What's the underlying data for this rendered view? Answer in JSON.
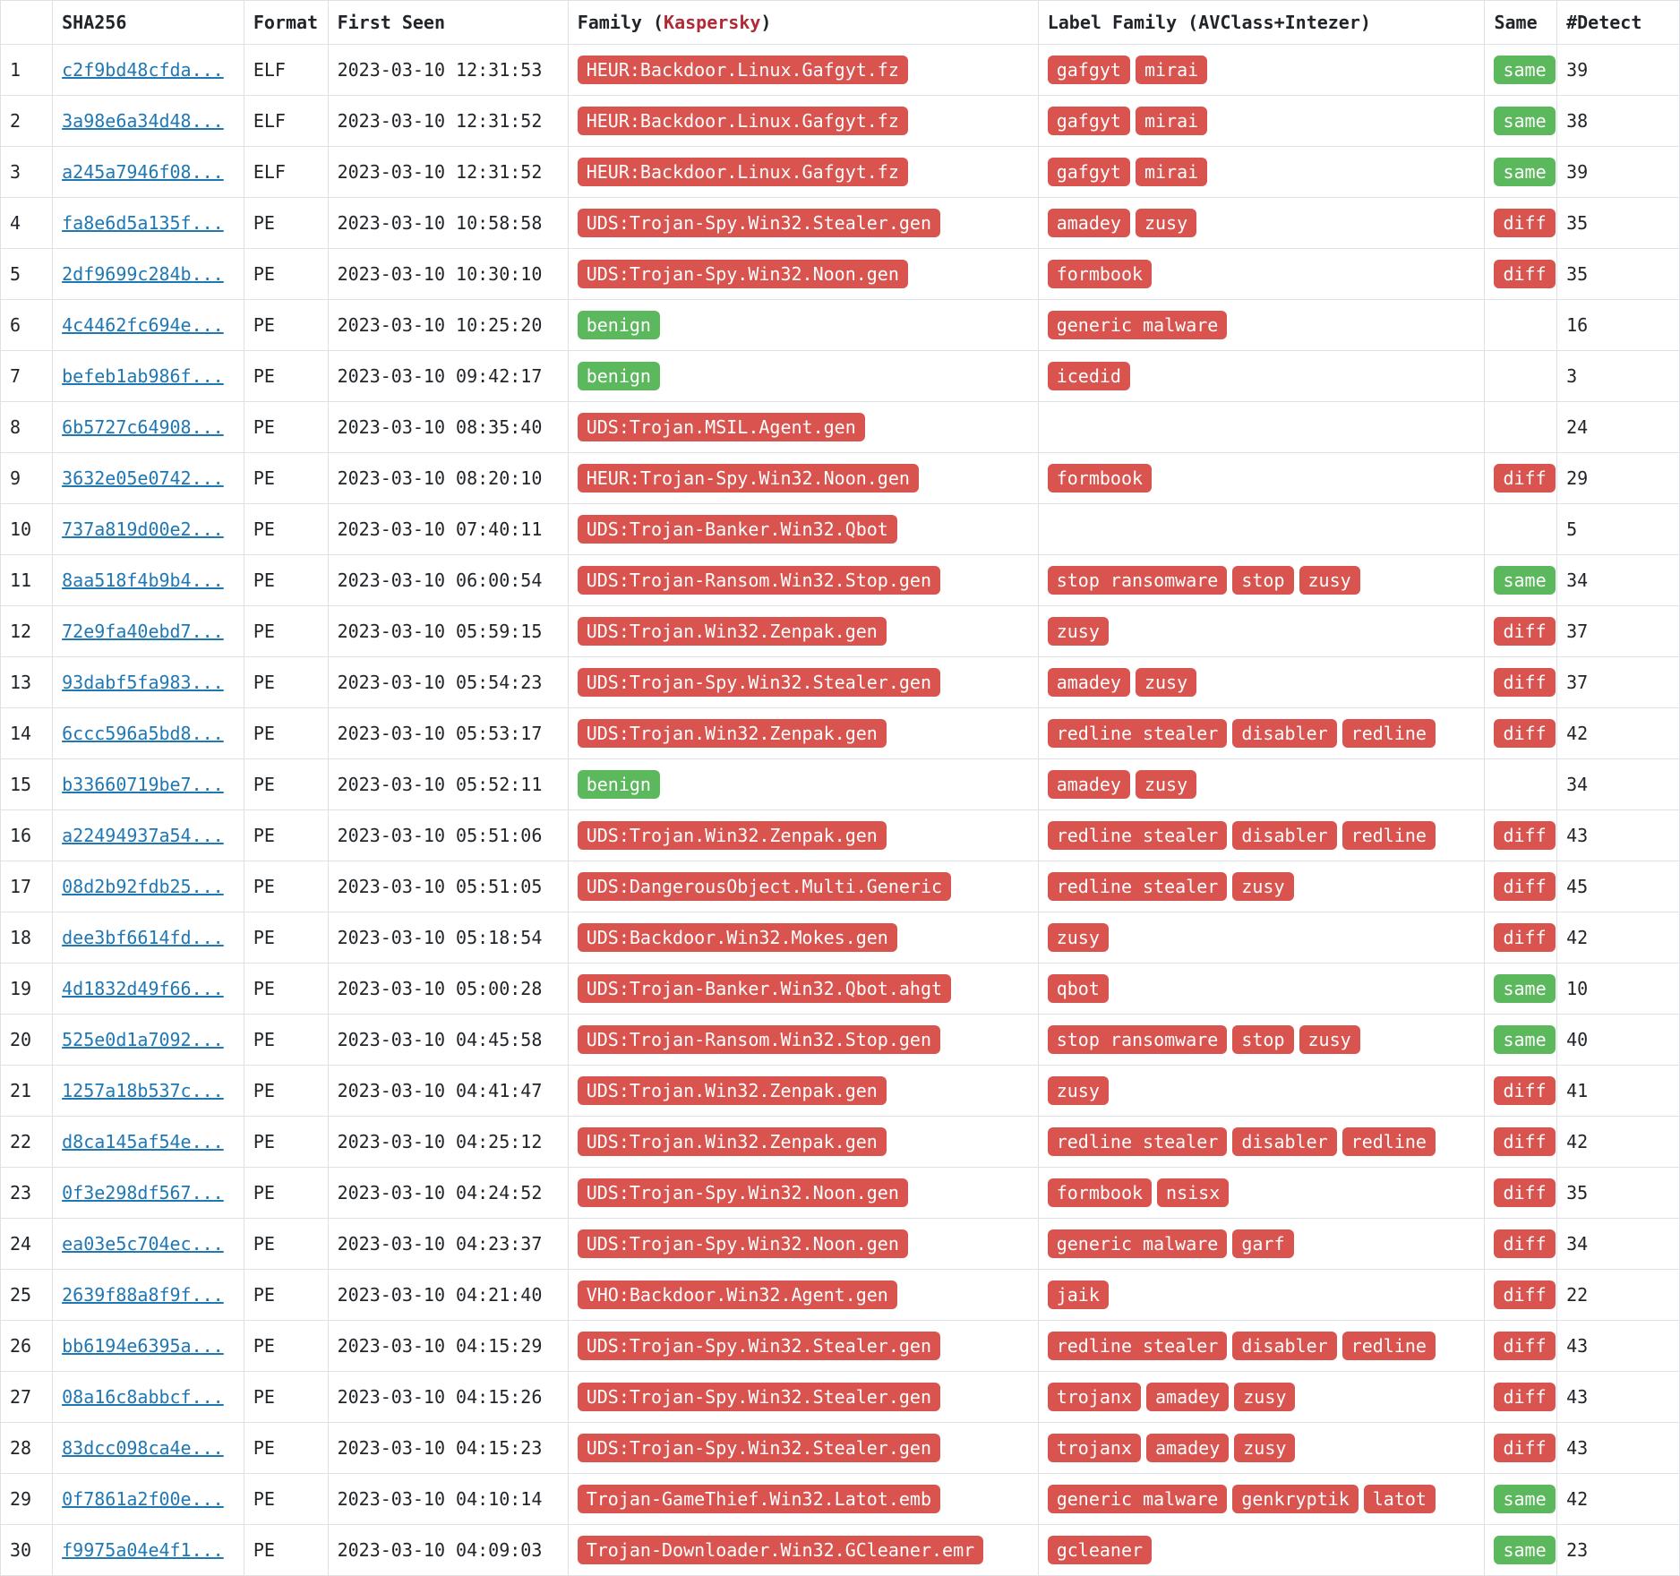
{
  "colors": {
    "tag_red": "#d9534f",
    "tag_green": "#5cb85c",
    "link": "#1f77b4",
    "kaspersky_red": "#b02a37",
    "border": "#dee2e6",
    "text": "#212529",
    "background": "#ffffff"
  },
  "columns": {
    "sha256": "SHA256",
    "format": "Format",
    "first_seen": "First Seen",
    "family_prefix": "Family (",
    "family_kaspersky": "Kaspersky",
    "family_suffix": ")",
    "label_family": "Label Family (AVClass+Intezer)",
    "same": "Same",
    "detect": "#Detect"
  },
  "rows": [
    {
      "idx": "1",
      "sha": "c2f9bd48cfda...",
      "fmt": "ELF",
      "seen": "2023-03-10 12:31:53",
      "family": [
        {
          "t": "HEUR:Backdoor.Linux.Gafgyt.fz",
          "c": "red"
        }
      ],
      "labels": [
        {
          "t": "gafgyt",
          "c": "red"
        },
        {
          "t": "mirai",
          "c": "red"
        }
      ],
      "same": [
        {
          "t": "same",
          "c": "green"
        }
      ],
      "det": "39"
    },
    {
      "idx": "2",
      "sha": "3a98e6a34d48...",
      "fmt": "ELF",
      "seen": "2023-03-10 12:31:52",
      "family": [
        {
          "t": "HEUR:Backdoor.Linux.Gafgyt.fz",
          "c": "red"
        }
      ],
      "labels": [
        {
          "t": "gafgyt",
          "c": "red"
        },
        {
          "t": "mirai",
          "c": "red"
        }
      ],
      "same": [
        {
          "t": "same",
          "c": "green"
        }
      ],
      "det": "38"
    },
    {
      "idx": "3",
      "sha": "a245a7946f08...",
      "fmt": "ELF",
      "seen": "2023-03-10 12:31:52",
      "family": [
        {
          "t": "HEUR:Backdoor.Linux.Gafgyt.fz",
          "c": "red"
        }
      ],
      "labels": [
        {
          "t": "gafgyt",
          "c": "red"
        },
        {
          "t": "mirai",
          "c": "red"
        }
      ],
      "same": [
        {
          "t": "same",
          "c": "green"
        }
      ],
      "det": "39"
    },
    {
      "idx": "4",
      "sha": "fa8e6d5a135f...",
      "fmt": "PE",
      "seen": "2023-03-10 10:58:58",
      "family": [
        {
          "t": "UDS:Trojan-Spy.Win32.Stealer.gen",
          "c": "red"
        }
      ],
      "labels": [
        {
          "t": "amadey",
          "c": "red"
        },
        {
          "t": "zusy",
          "c": "red"
        }
      ],
      "same": [
        {
          "t": "diff",
          "c": "red"
        }
      ],
      "det": "35"
    },
    {
      "idx": "5",
      "sha": "2df9699c284b...",
      "fmt": "PE",
      "seen": "2023-03-10 10:30:10",
      "family": [
        {
          "t": "UDS:Trojan-Spy.Win32.Noon.gen",
          "c": "red"
        }
      ],
      "labels": [
        {
          "t": "formbook",
          "c": "red"
        }
      ],
      "same": [
        {
          "t": "diff",
          "c": "red"
        }
      ],
      "det": "35"
    },
    {
      "idx": "6",
      "sha": "4c4462fc694e...",
      "fmt": "PE",
      "seen": "2023-03-10 10:25:20",
      "family": [
        {
          "t": "benign",
          "c": "green"
        }
      ],
      "labels": [
        {
          "t": "generic malware",
          "c": "red"
        }
      ],
      "same": [],
      "det": "16"
    },
    {
      "idx": "7",
      "sha": "befeb1ab986f...",
      "fmt": "PE",
      "seen": "2023-03-10 09:42:17",
      "family": [
        {
          "t": "benign",
          "c": "green"
        }
      ],
      "labels": [
        {
          "t": "icedid",
          "c": "red"
        }
      ],
      "same": [],
      "det": "3"
    },
    {
      "idx": "8",
      "sha": "6b5727c64908...",
      "fmt": "PE",
      "seen": "2023-03-10 08:35:40",
      "family": [
        {
          "t": "UDS:Trojan.MSIL.Agent.gen",
          "c": "red"
        }
      ],
      "labels": [],
      "same": [],
      "det": "24"
    },
    {
      "idx": "9",
      "sha": "3632e05e0742...",
      "fmt": "PE",
      "seen": "2023-03-10 08:20:10",
      "family": [
        {
          "t": "HEUR:Trojan-Spy.Win32.Noon.gen",
          "c": "red"
        }
      ],
      "labels": [
        {
          "t": "formbook",
          "c": "red"
        }
      ],
      "same": [
        {
          "t": "diff",
          "c": "red"
        }
      ],
      "det": "29"
    },
    {
      "idx": "10",
      "sha": "737a819d00e2...",
      "fmt": "PE",
      "seen": "2023-03-10 07:40:11",
      "family": [
        {
          "t": "UDS:Trojan-Banker.Win32.Qbot",
          "c": "red"
        }
      ],
      "labels": [],
      "same": [],
      "det": "5"
    },
    {
      "idx": "11",
      "sha": "8aa518f4b9b4...",
      "fmt": "PE",
      "seen": "2023-03-10 06:00:54",
      "family": [
        {
          "t": "UDS:Trojan-Ransom.Win32.Stop.gen",
          "c": "red"
        }
      ],
      "labels": [
        {
          "t": "stop ransomware",
          "c": "red"
        },
        {
          "t": "stop",
          "c": "red"
        },
        {
          "t": "zusy",
          "c": "red"
        }
      ],
      "same": [
        {
          "t": "same",
          "c": "green"
        }
      ],
      "det": "34"
    },
    {
      "idx": "12",
      "sha": "72e9fa40ebd7...",
      "fmt": "PE",
      "seen": "2023-03-10 05:59:15",
      "family": [
        {
          "t": "UDS:Trojan.Win32.Zenpak.gen",
          "c": "red"
        }
      ],
      "labels": [
        {
          "t": "zusy",
          "c": "red"
        }
      ],
      "same": [
        {
          "t": "diff",
          "c": "red"
        }
      ],
      "det": "37"
    },
    {
      "idx": "13",
      "sha": "93dabf5fa983...",
      "fmt": "PE",
      "seen": "2023-03-10 05:54:23",
      "family": [
        {
          "t": "UDS:Trojan-Spy.Win32.Stealer.gen",
          "c": "red"
        }
      ],
      "labels": [
        {
          "t": "amadey",
          "c": "red"
        },
        {
          "t": "zusy",
          "c": "red"
        }
      ],
      "same": [
        {
          "t": "diff",
          "c": "red"
        }
      ],
      "det": "37"
    },
    {
      "idx": "14",
      "sha": "6ccc596a5bd8...",
      "fmt": "PE",
      "seen": "2023-03-10 05:53:17",
      "family": [
        {
          "t": "UDS:Trojan.Win32.Zenpak.gen",
          "c": "red"
        }
      ],
      "labels": [
        {
          "t": "redline stealer",
          "c": "red"
        },
        {
          "t": "disabler",
          "c": "red"
        },
        {
          "t": "redline",
          "c": "red"
        }
      ],
      "same": [
        {
          "t": "diff",
          "c": "red"
        }
      ],
      "det": "42"
    },
    {
      "idx": "15",
      "sha": "b33660719be7...",
      "fmt": "PE",
      "seen": "2023-03-10 05:52:11",
      "family": [
        {
          "t": "benign",
          "c": "green"
        }
      ],
      "labels": [
        {
          "t": "amadey",
          "c": "red"
        },
        {
          "t": "zusy",
          "c": "red"
        }
      ],
      "same": [],
      "det": "34"
    },
    {
      "idx": "16",
      "sha": "a22494937a54...",
      "fmt": "PE",
      "seen": "2023-03-10 05:51:06",
      "family": [
        {
          "t": "UDS:Trojan.Win32.Zenpak.gen",
          "c": "red"
        }
      ],
      "labels": [
        {
          "t": "redline stealer",
          "c": "red"
        },
        {
          "t": "disabler",
          "c": "red"
        },
        {
          "t": "redline",
          "c": "red"
        }
      ],
      "same": [
        {
          "t": "diff",
          "c": "red"
        }
      ],
      "det": "43"
    },
    {
      "idx": "17",
      "sha": "08d2b92fdb25...",
      "fmt": "PE",
      "seen": "2023-03-10 05:51:05",
      "family": [
        {
          "t": "UDS:DangerousObject.Multi.Generic",
          "c": "red"
        }
      ],
      "labels": [
        {
          "t": "redline stealer",
          "c": "red"
        },
        {
          "t": "zusy",
          "c": "red"
        }
      ],
      "same": [
        {
          "t": "diff",
          "c": "red"
        }
      ],
      "det": "45"
    },
    {
      "idx": "18",
      "sha": "dee3bf6614fd...",
      "fmt": "PE",
      "seen": "2023-03-10 05:18:54",
      "family": [
        {
          "t": "UDS:Backdoor.Win32.Mokes.gen",
          "c": "red"
        }
      ],
      "labels": [
        {
          "t": "zusy",
          "c": "red"
        }
      ],
      "same": [
        {
          "t": "diff",
          "c": "red"
        }
      ],
      "det": "42"
    },
    {
      "idx": "19",
      "sha": "4d1832d49f66...",
      "fmt": "PE",
      "seen": "2023-03-10 05:00:28",
      "family": [
        {
          "t": "UDS:Trojan-Banker.Win32.Qbot.ahgt",
          "c": "red"
        }
      ],
      "labels": [
        {
          "t": "qbot",
          "c": "red"
        }
      ],
      "same": [
        {
          "t": "same",
          "c": "green"
        }
      ],
      "det": "10"
    },
    {
      "idx": "20",
      "sha": "525e0d1a7092...",
      "fmt": "PE",
      "seen": "2023-03-10 04:45:58",
      "family": [
        {
          "t": "UDS:Trojan-Ransom.Win32.Stop.gen",
          "c": "red"
        }
      ],
      "labels": [
        {
          "t": "stop ransomware",
          "c": "red"
        },
        {
          "t": "stop",
          "c": "red"
        },
        {
          "t": "zusy",
          "c": "red"
        }
      ],
      "same": [
        {
          "t": "same",
          "c": "green"
        }
      ],
      "det": "40"
    },
    {
      "idx": "21",
      "sha": "1257a18b537c...",
      "fmt": "PE",
      "seen": "2023-03-10 04:41:47",
      "family": [
        {
          "t": "UDS:Trojan.Win32.Zenpak.gen",
          "c": "red"
        }
      ],
      "labels": [
        {
          "t": "zusy",
          "c": "red"
        }
      ],
      "same": [
        {
          "t": "diff",
          "c": "red"
        }
      ],
      "det": "41"
    },
    {
      "idx": "22",
      "sha": "d8ca145af54e...",
      "fmt": "PE",
      "seen": "2023-03-10 04:25:12",
      "family": [
        {
          "t": "UDS:Trojan.Win32.Zenpak.gen",
          "c": "red"
        }
      ],
      "labels": [
        {
          "t": "redline stealer",
          "c": "red"
        },
        {
          "t": "disabler",
          "c": "red"
        },
        {
          "t": "redline",
          "c": "red"
        }
      ],
      "same": [
        {
          "t": "diff",
          "c": "red"
        }
      ],
      "det": "42"
    },
    {
      "idx": "23",
      "sha": "0f3e298df567...",
      "fmt": "PE",
      "seen": "2023-03-10 04:24:52",
      "family": [
        {
          "t": "UDS:Trojan-Spy.Win32.Noon.gen",
          "c": "red"
        }
      ],
      "labels": [
        {
          "t": "formbook",
          "c": "red"
        },
        {
          "t": "nsisx",
          "c": "red"
        }
      ],
      "same": [
        {
          "t": "diff",
          "c": "red"
        }
      ],
      "det": "35"
    },
    {
      "idx": "24",
      "sha": "ea03e5c704ec...",
      "fmt": "PE",
      "seen": "2023-03-10 04:23:37",
      "family": [
        {
          "t": "UDS:Trojan-Spy.Win32.Noon.gen",
          "c": "red"
        }
      ],
      "labels": [
        {
          "t": "generic malware",
          "c": "red"
        },
        {
          "t": "garf",
          "c": "red"
        }
      ],
      "same": [
        {
          "t": "diff",
          "c": "red"
        }
      ],
      "det": "34"
    },
    {
      "idx": "25",
      "sha": "2639f88a8f9f...",
      "fmt": "PE",
      "seen": "2023-03-10 04:21:40",
      "family": [
        {
          "t": "VHO:Backdoor.Win32.Agent.gen",
          "c": "red"
        }
      ],
      "labels": [
        {
          "t": "jaik",
          "c": "red"
        }
      ],
      "same": [
        {
          "t": "diff",
          "c": "red"
        }
      ],
      "det": "22"
    },
    {
      "idx": "26",
      "sha": "bb6194e6395a...",
      "fmt": "PE",
      "seen": "2023-03-10 04:15:29",
      "family": [
        {
          "t": "UDS:Trojan-Spy.Win32.Stealer.gen",
          "c": "red"
        }
      ],
      "labels": [
        {
          "t": "redline stealer",
          "c": "red"
        },
        {
          "t": "disabler",
          "c": "red"
        },
        {
          "t": "redline",
          "c": "red"
        }
      ],
      "same": [
        {
          "t": "diff",
          "c": "red"
        }
      ],
      "det": "43"
    },
    {
      "idx": "27",
      "sha": "08a16c8abbcf...",
      "fmt": "PE",
      "seen": "2023-03-10 04:15:26",
      "family": [
        {
          "t": "UDS:Trojan-Spy.Win32.Stealer.gen",
          "c": "red"
        }
      ],
      "labels": [
        {
          "t": "trojanx",
          "c": "red"
        },
        {
          "t": "amadey",
          "c": "red"
        },
        {
          "t": "zusy",
          "c": "red"
        }
      ],
      "same": [
        {
          "t": "diff",
          "c": "red"
        }
      ],
      "det": "43"
    },
    {
      "idx": "28",
      "sha": "83dcc098ca4e...",
      "fmt": "PE",
      "seen": "2023-03-10 04:15:23",
      "family": [
        {
          "t": "UDS:Trojan-Spy.Win32.Stealer.gen",
          "c": "red"
        }
      ],
      "labels": [
        {
          "t": "trojanx",
          "c": "red"
        },
        {
          "t": "amadey",
          "c": "red"
        },
        {
          "t": "zusy",
          "c": "red"
        }
      ],
      "same": [
        {
          "t": "diff",
          "c": "red"
        }
      ],
      "det": "43"
    },
    {
      "idx": "29",
      "sha": "0f7861a2f00e...",
      "fmt": "PE",
      "seen": "2023-03-10 04:10:14",
      "family": [
        {
          "t": "Trojan-GameThief.Win32.Latot.emb",
          "c": "red"
        }
      ],
      "labels": [
        {
          "t": "generic malware",
          "c": "red"
        },
        {
          "t": "genkryptik",
          "c": "red"
        },
        {
          "t": "latot",
          "c": "red"
        }
      ],
      "same": [
        {
          "t": "same",
          "c": "green"
        }
      ],
      "det": "42"
    },
    {
      "idx": "30",
      "sha": "f9975a04e4f1...",
      "fmt": "PE",
      "seen": "2023-03-10 04:09:03",
      "family": [
        {
          "t": "Trojan-Downloader.Win32.GCleaner.emr",
          "c": "red"
        }
      ],
      "labels": [
        {
          "t": "gcleaner",
          "c": "red"
        }
      ],
      "same": [
        {
          "t": "same",
          "c": "green"
        }
      ],
      "det": "23"
    }
  ]
}
